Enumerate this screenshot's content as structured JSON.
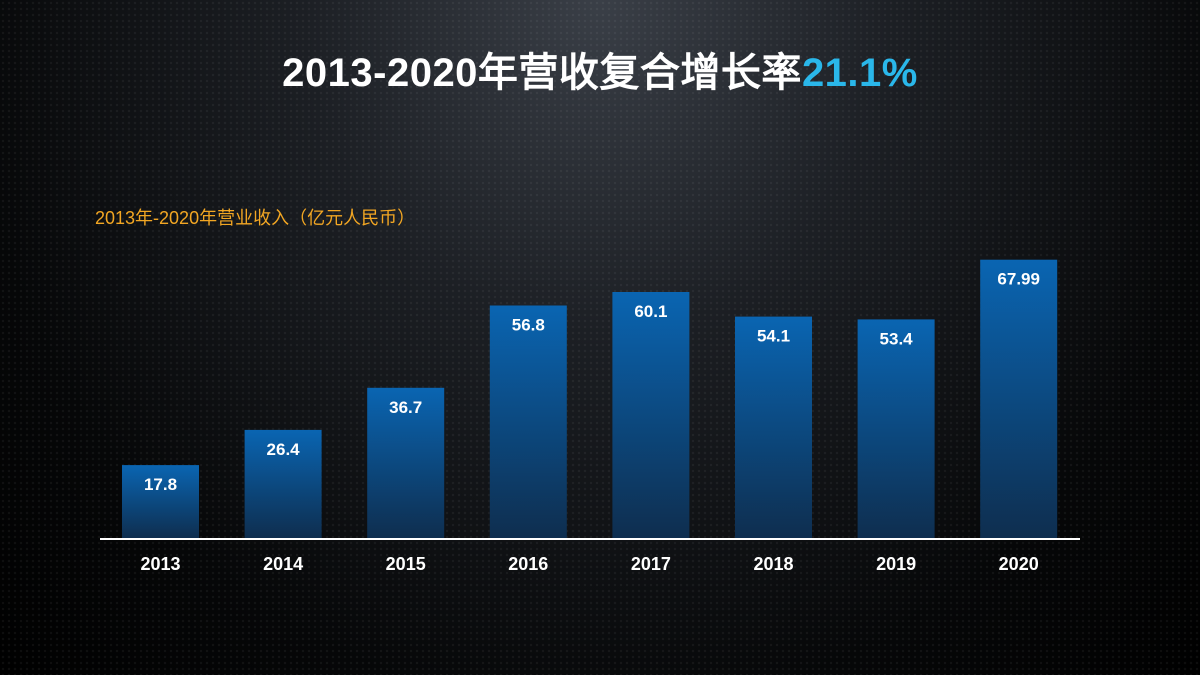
{
  "title": {
    "main": "2013-2020年营收复合增长率",
    "highlight": "21.1%"
  },
  "colors": {
    "bar_top": "#0a65b2",
    "bar_bottom": "#0e2e4f",
    "highlight": "#2ab7ea",
    "subtitle": "#f2a623",
    "axis": "#ffffff"
  },
  "chart_data": {
    "type": "bar",
    "title": "2013年-2020年营业收入（亿元人民币）",
    "categories": [
      "2013",
      "2014",
      "2015",
      "2016",
      "2017",
      "2018",
      "2019",
      "2020"
    ],
    "values": [
      17.8,
      26.4,
      36.7,
      56.8,
      60.1,
      54.1,
      53.4,
      67.99
    ],
    "labels": [
      "17.8",
      "26.4",
      "36.7",
      "56.8",
      "60.1",
      "54.1",
      "53.4",
      "67.99"
    ],
    "ylim": [
      0,
      68
    ],
    "grid": false,
    "legend": "none"
  }
}
